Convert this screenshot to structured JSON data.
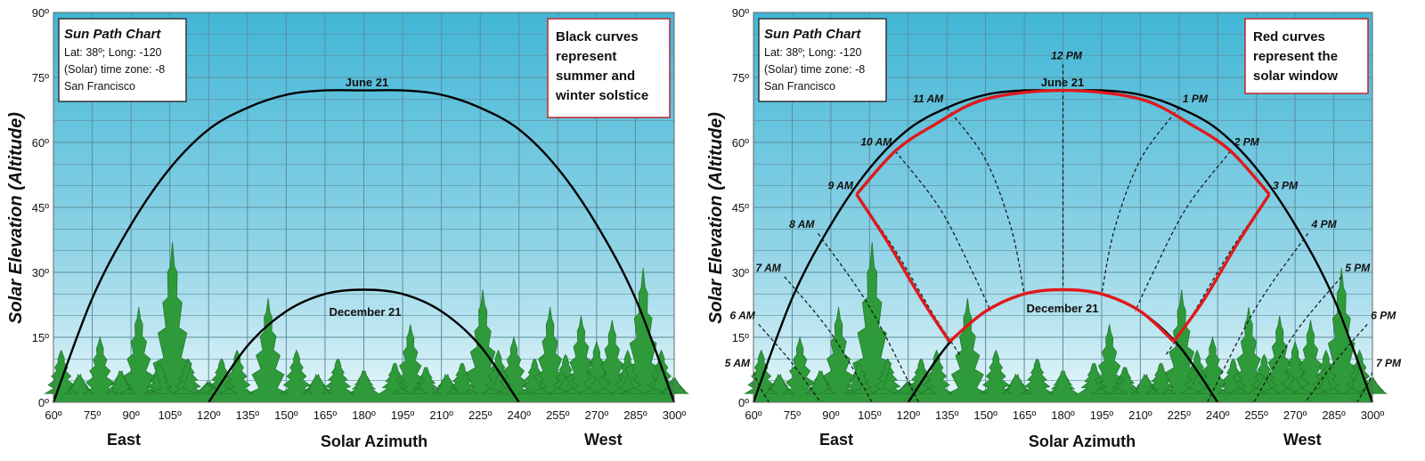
{
  "chart_data": [
    {
      "type": "line",
      "info_box": {
        "title": "Sun Path Chart",
        "lines": [
          "Lat: 38º; Long: -120",
          "(Solar) time zone: -8",
          "San Francisco"
        ]
      },
      "note_lines": [
        "Black curves",
        "represent",
        "summer and",
        "winter solstice"
      ],
      "ylabel": "Solar Elevation (Altitude)",
      "xlabel": "Solar Azimuth",
      "direction_labels": {
        "east": "East",
        "west": "West"
      },
      "xlim": [
        60,
        300
      ],
      "ylim": [
        0,
        90
      ],
      "x_ticks": [
        "60º",
        "75º",
        "90º",
        "105º",
        "120º",
        "135º",
        "150º",
        "165º",
        "180º",
        "195º",
        "210º",
        "225º",
        "240º",
        "255º",
        "270º",
        "285º",
        "300º"
      ],
      "y_ticks": [
        "0º",
        "15º",
        "30º",
        "45º",
        "60º",
        "75º",
        "90º"
      ],
      "grid": true,
      "series": [
        {
          "name": "June 21",
          "color": "#000000",
          "x": [
            60,
            75,
            90,
            105,
            120,
            135,
            150,
            165,
            180,
            195,
            210,
            225,
            240,
            255,
            270,
            285,
            300
          ],
          "y": [
            0,
            24,
            41,
            54,
            63,
            68,
            71,
            72,
            72,
            72,
            71,
            68,
            63,
            54,
            41,
            24,
            0
          ]
        },
        {
          "name": "December 21",
          "color": "#000000",
          "x": [
            120,
            135,
            150,
            165,
            180,
            195,
            210,
            225,
            240
          ],
          "y": [
            0,
            13,
            21,
            25,
            26,
            25,
            21,
            13,
            0
          ]
        }
      ]
    },
    {
      "type": "line",
      "info_box": {
        "title": "Sun Path Chart",
        "lines": [
          "Lat: 38º; Long: -120",
          "(Solar) time zone: -8",
          "San Francisco"
        ]
      },
      "note_lines": [
        "Red curves",
        "represent the",
        "solar window"
      ],
      "ylabel": "Solar Elevation (Altitude)",
      "xlabel": "Solar Azimuth",
      "direction_labels": {
        "east": "East",
        "west": "West"
      },
      "xlim": [
        60,
        300
      ],
      "ylim": [
        0,
        90
      ],
      "x_ticks": [
        "60º",
        "75º",
        "90º",
        "105º",
        "120º",
        "135º",
        "150º",
        "165º",
        "180º",
        "195º",
        "210º",
        "225º",
        "240º",
        "255º",
        "270º",
        "285º",
        "300º"
      ],
      "y_ticks": [
        "0º",
        "15º",
        "30º",
        "45º",
        "60º",
        "75º",
        "90º"
      ],
      "grid": true,
      "series": [
        {
          "name": "June 21",
          "color": "#000000",
          "x": [
            60,
            75,
            90,
            105,
            120,
            135,
            150,
            165,
            180,
            195,
            210,
            225,
            240,
            255,
            270,
            285,
            300
          ],
          "y": [
            0,
            24,
            41,
            54,
            63,
            68,
            71,
            72,
            72,
            72,
            71,
            68,
            63,
            54,
            41,
            24,
            0
          ]
        },
        {
          "name": "December 21",
          "color": "#000000",
          "x": [
            120,
            135,
            150,
            165,
            180,
            195,
            210,
            225,
            240
          ],
          "y": [
            0,
            13,
            21,
            25,
            26,
            25,
            21,
            13,
            0
          ]
        }
      ],
      "solar_window": {
        "color": "#e0191b",
        "top": {
          "x": [
            100,
            115,
            130,
            150,
            180,
            210,
            230,
            245,
            260
          ],
          "y": [
            48,
            58,
            64,
            70,
            72,
            70,
            64,
            58,
            48
          ]
        },
        "bottom": {
          "x": [
            136,
            150,
            165,
            180,
            195,
            210,
            223
          ],
          "y": [
            14,
            21,
            25,
            26,
            25,
            21,
            14
          ]
        },
        "left": {
          "x": [
            100,
            112,
            125,
            136
          ],
          "y": [
            48,
            37,
            24,
            14
          ]
        },
        "right": {
          "x": [
            260,
            248,
            235,
            223
          ],
          "y": [
            48,
            37,
            24,
            14
          ]
        }
      },
      "hour_lines": [
        {
          "label": "5 AM",
          "x": [
            60,
            62,
            66
          ],
          "y": [
            7,
            4,
            0
          ]
        },
        {
          "label": "6 AM",
          "x": [
            62,
            75,
            86
          ],
          "y": [
            18,
            9,
            0
          ]
        },
        {
          "label": "7 AM",
          "x": [
            72,
            90,
            106
          ],
          "y": [
            29,
            16,
            0
          ]
        },
        {
          "label": "8 AM",
          "x": [
            85,
            105,
            124
          ],
          "y": [
            39,
            22,
            0
          ]
        },
        {
          "label": "9 AM",
          "x": [
            100,
            115,
            130,
            140
          ],
          "y": [
            48,
            35,
            20,
            11
          ]
        },
        {
          "label": "10 AM",
          "x": [
            115,
            132,
            145,
            152
          ],
          "y": [
            58,
            45,
            30,
            21
          ]
        },
        {
          "label": "11 AM",
          "x": [
            135,
            150,
            160,
            165
          ],
          "y": [
            68,
            56,
            40,
            25
          ]
        },
        {
          "label": "12 PM",
          "x": [
            180,
            180
          ],
          "y": [
            78,
            26
          ]
        },
        {
          "label": "1 PM",
          "x": [
            225,
            210,
            200,
            195
          ],
          "y": [
            68,
            56,
            40,
            25
          ]
        },
        {
          "label": "2 PM",
          "x": [
            245,
            228,
            215,
            208
          ],
          "y": [
            58,
            45,
            30,
            21
          ]
        },
        {
          "label": "3 PM",
          "x": [
            260,
            245,
            230,
            220
          ],
          "y": [
            48,
            35,
            20,
            11
          ]
        },
        {
          "label": "4 PM",
          "x": [
            275,
            255,
            236
          ],
          "y": [
            39,
            22,
            0
          ]
        },
        {
          "label": "5 PM",
          "x": [
            288,
            270,
            254
          ],
          "y": [
            29,
            16,
            0
          ]
        },
        {
          "label": "6 PM",
          "x": [
            298,
            285,
            274
          ],
          "y": [
            18,
            9,
            0
          ]
        },
        {
          "label": "7 PM",
          "x": [
            300,
            298,
            294
          ],
          "y": [
            7,
            4,
            0
          ]
        }
      ]
    }
  ]
}
